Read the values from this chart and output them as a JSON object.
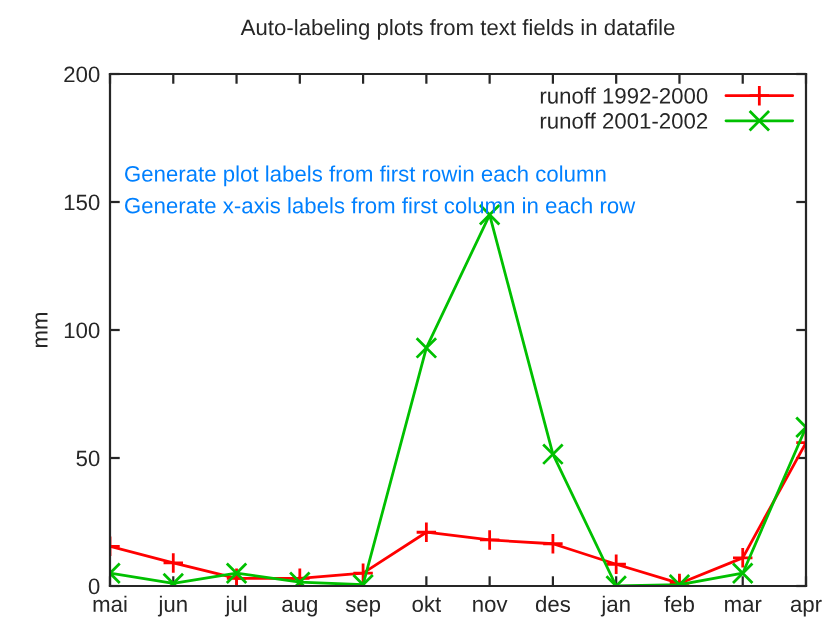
{
  "chart_data": {
    "type": "line",
    "title": "Auto-labeling plots from text fields in datafile",
    "ylabel": "mm",
    "categories": [
      "mai",
      "jun",
      "jul",
      "aug",
      "sep",
      "okt",
      "nov",
      "des",
      "jan",
      "feb",
      "mar",
      "apr"
    ],
    "series": [
      {
        "name": "runoff 1992-2000",
        "color": "#ff0000",
        "marker": "cross",
        "values": [
          15.5,
          9,
          3,
          3,
          5,
          21,
          18,
          16.5,
          8.5,
          1,
          11,
          56
        ]
      },
      {
        "name": "runoff 2001-2002",
        "color": "#00c000",
        "marker": "x",
        "values": [
          5,
          1,
          5,
          1.5,
          0.5,
          93,
          145,
          51.5,
          0,
          0.5,
          5,
          62
        ]
      }
    ],
    "ylim": [
      0,
      200
    ],
    "yticks": [
      0,
      50,
      100,
      150,
      200
    ],
    "grid": false,
    "legend": "top right",
    "annotations": [
      "Generate plot labels from first rowin each column",
      "Generate x-axis labels from first column in each row"
    ]
  }
}
